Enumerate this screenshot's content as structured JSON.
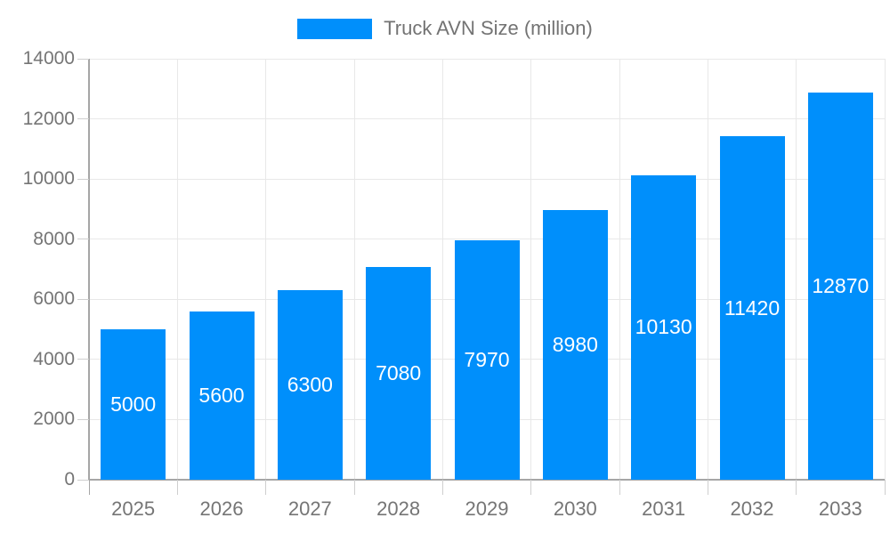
{
  "legend": {
    "label": "Truck AVN Size (million)",
    "swatch_color": "#008FFB"
  },
  "chart_data": {
    "type": "bar",
    "title": "",
    "categories": [
      "2025",
      "2026",
      "2027",
      "2028",
      "2029",
      "2030",
      "2031",
      "2032",
      "2033"
    ],
    "series": [
      {
        "name": "Truck AVN Size (million)",
        "color": "#008FFB",
        "values": [
          5000,
          5600,
          6300,
          7080,
          7970,
          8980,
          10130,
          11420,
          12870
        ]
      }
    ],
    "value_labels": [
      5000,
      5600,
      6300,
      7080,
      7970,
      8980,
      10130,
      11420,
      12870
    ],
    "xlabel": "",
    "ylabel": "",
    "ylim": [
      0,
      14000
    ],
    "ytick_step": 2000,
    "grid": true,
    "legend_position": "top"
  },
  "colors": {
    "bar": "#008FFB",
    "value_label_text": "#ffffff",
    "axis_line": "#a6a6a6",
    "gridline": "#e8e8e8",
    "tick": "#cfcfcf",
    "axis_label_text": "#757575",
    "legend_text": "#737373",
    "background": "#ffffff"
  }
}
